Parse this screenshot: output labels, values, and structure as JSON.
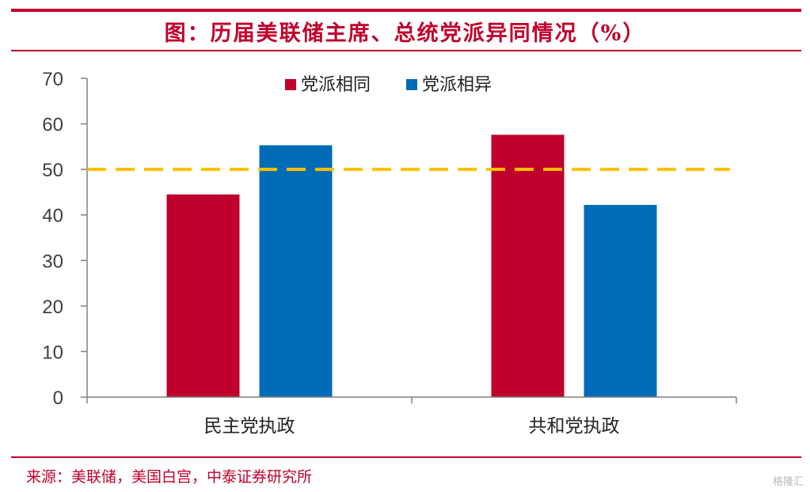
{
  "header": {
    "title": "图：历届美联储主席、总统党派异同情况（%）"
  },
  "footer": {
    "source": "来源：美联储，美国白宫，中泰证券研究所",
    "watermark": "格隆汇"
  },
  "colors": {
    "brand_red": "#c0002c",
    "series_same": "#c0002c",
    "series_diff": "#006cb7",
    "reference_line": "#ffc000",
    "axis": "#808080"
  },
  "chart_data": {
    "type": "bar",
    "categories": [
      "民主党执政",
      "共和党执政"
    ],
    "series": [
      {
        "name": "党派相同",
        "values": [
          44.5,
          57.6
        ]
      },
      {
        "name": "党派相异",
        "values": [
          55.3,
          42.2
        ]
      }
    ],
    "ylim": [
      0,
      70
    ],
    "yticks": [
      0,
      10,
      20,
      30,
      40,
      50,
      60,
      70
    ],
    "reference_line": {
      "y": 50,
      "style": "dashed"
    },
    "legend_position": "top-center",
    "grid": false
  }
}
